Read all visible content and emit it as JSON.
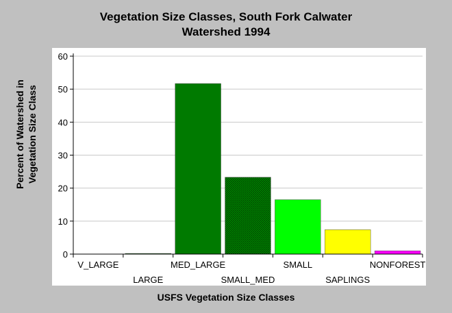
{
  "chart_data": {
    "type": "bar",
    "title_lines": [
      "Vegetation Size Classes, South Fork Calwater",
      "Watershed 1994"
    ],
    "xlabel": "USFS Vegetation Size Classes",
    "ylabel_lines": [
      "Percent of Watershed in",
      "Vegetation Size Class"
    ],
    "categories": [
      "V_LARGE",
      "LARGE",
      "MED_LARGE",
      "SMALL_MED",
      "SMALL",
      "SAPLINGS",
      "NONFOREST"
    ],
    "values": [
      0,
      0.2,
      51.7,
      23.3,
      16.5,
      7.4,
      1.0
    ],
    "colors": [
      "#008000",
      "#007a00",
      "#007a00",
      "#008800",
      "#00ff00",
      "#ffff00",
      "#ff00ff"
    ],
    "ylim": [
      0,
      60
    ],
    "yticks": [
      0,
      10,
      20,
      30,
      40,
      50,
      60
    ],
    "grid": true,
    "legend": "none"
  }
}
